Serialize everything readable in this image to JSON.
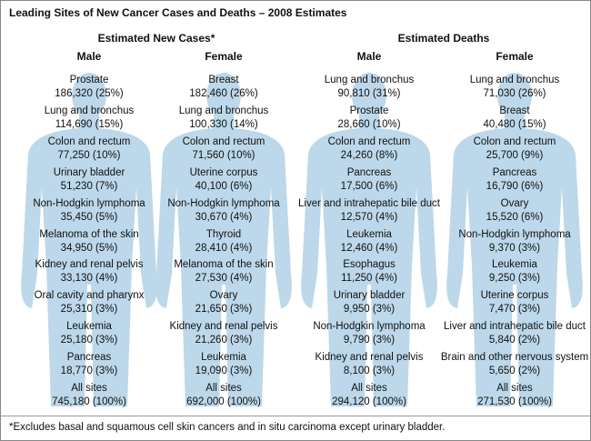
{
  "title": "Leading Sites of New Cancer Cases and Deaths – 2008 Estimates",
  "sections": [
    {
      "title": "Estimated New Cases*",
      "columns": [
        {
          "title": "Male",
          "entries": [
            {
              "site": "Prostate",
              "stat": "186,320 (25%)"
            },
            {
              "site": "Lung and bronchus",
              "stat": "114,690 (15%)"
            },
            {
              "site": "Colon and rectum",
              "stat": "77,250 (10%)"
            },
            {
              "site": "Urinary bladder",
              "stat": "51,230 (7%)"
            },
            {
              "site": "Non-Hodgkin lymphoma",
              "stat": "35,450 (5%)"
            },
            {
              "site": "Melanoma of the skin",
              "stat": "34,950 (5%)"
            },
            {
              "site": "Kidney and renal pelvis",
              "stat": "33,130 (4%)"
            },
            {
              "site": "Oral cavity and pharynx",
              "stat": "25,310 (3%)"
            },
            {
              "site": "Leukemia",
              "stat": "25,180 (3%)"
            },
            {
              "site": "Pancreas",
              "stat": "18,770 (3%)"
            },
            {
              "site": "All sites",
              "stat": "745,180 (100%)"
            }
          ]
        },
        {
          "title": "Female",
          "entries": [
            {
              "site": "Breast",
              "stat": "182,460 (26%)"
            },
            {
              "site": "Lung and bronchus",
              "stat": "100,330 (14%)"
            },
            {
              "site": "Colon and rectum",
              "stat": "71,560 (10%)"
            },
            {
              "site": "Uterine corpus",
              "stat": "40,100 (6%)"
            },
            {
              "site": "Non-Hodgkin lymphoma",
              "stat": "30,670 (4%)"
            },
            {
              "site": "Thyroid",
              "stat": "28,410 (4%)"
            },
            {
              "site": "Melanoma of the skin",
              "stat": "27,530 (4%)"
            },
            {
              "site": "Ovary",
              "stat": "21,650 (3%)"
            },
            {
              "site": "Kidney and renal pelvis",
              "stat": "21,260 (3%)"
            },
            {
              "site": "Leukemia",
              "stat": "19,090 (3%)"
            },
            {
              "site": "All sites",
              "stat": "692,000 (100%)"
            }
          ]
        }
      ]
    },
    {
      "title": "Estimated Deaths",
      "columns": [
        {
          "title": "Male",
          "entries": [
            {
              "site": "Lung and bronchus",
              "stat": "90,810 (31%)"
            },
            {
              "site": "Prostate",
              "stat": "28,660 (10%)"
            },
            {
              "site": "Colon and rectum",
              "stat": "24,260 (8%)"
            },
            {
              "site": "Pancreas",
              "stat": "17,500 (6%)"
            },
            {
              "site": "Liver and intrahepatic bile duct",
              "stat": "12,570 (4%)"
            },
            {
              "site": "Leukemia",
              "stat": "12,460 (4%)"
            },
            {
              "site": "Esophagus",
              "stat": "11,250 (4%)"
            },
            {
              "site": "Urinary bladder",
              "stat": "9,950 (3%)"
            },
            {
              "site": "Non-Hodgkin lymphoma",
              "stat": "9,790 (3%)"
            },
            {
              "site": "Kidney and renal pelvis",
              "stat": "8,100 (3%)"
            },
            {
              "site": "All sites",
              "stat": "294,120 (100%)"
            }
          ]
        },
        {
          "title": "Female",
          "entries": [
            {
              "site": "Lung and bronchus",
              "stat": "71,030 (26%)"
            },
            {
              "site": "Breast",
              "stat": "40,480 (15%)"
            },
            {
              "site": "Colon and rectum",
              "stat": "25,700 (9%)"
            },
            {
              "site": "Pancreas",
              "stat": "16,790 (6%)"
            },
            {
              "site": "Ovary",
              "stat": "15,520 (6%)"
            },
            {
              "site": "Non-Hodgkin lymphoma",
              "stat": "9,370 (3%)"
            },
            {
              "site": "Leukemia",
              "stat": "9,250 (3%)"
            },
            {
              "site": "Uterine corpus",
              "stat": "7,470 (3%)"
            },
            {
              "site": "Liver and intrahepatic bile duct",
              "stat": "5,840 (2%)"
            },
            {
              "site": "Brain and other nervous system",
              "stat": "5,650 (2%)"
            },
            {
              "site": "All sites",
              "stat": "271,530 (100%)"
            }
          ]
        }
      ]
    }
  ],
  "footnote": "*Excludes basal and squamous cell skin cancers and in situ carcinoma except urinary bladder."
}
